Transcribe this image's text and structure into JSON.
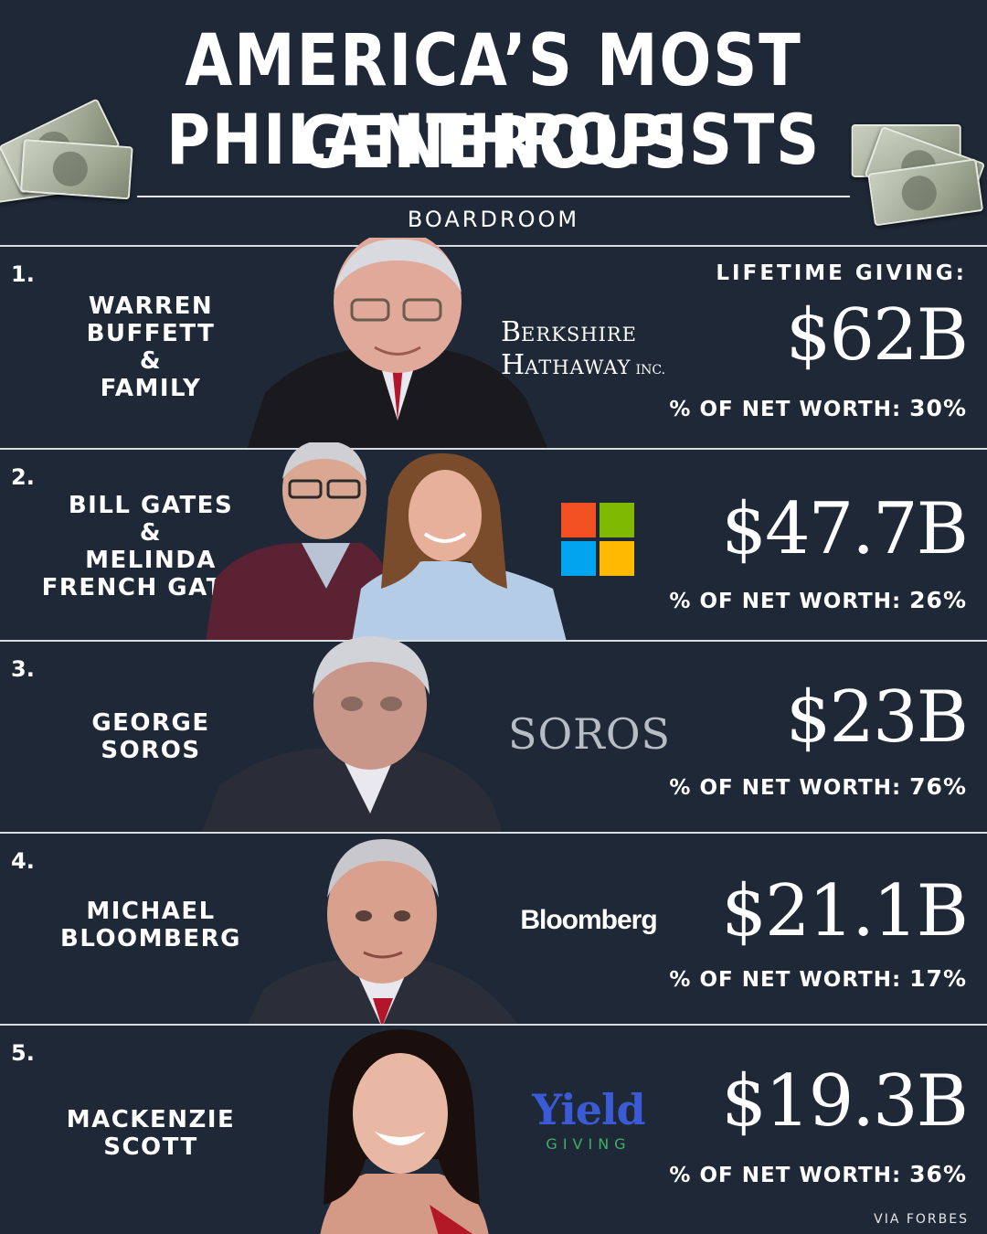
{
  "title": {
    "line1": "AMERICA’S MOST GENEROUS",
    "line2": "PHILANTHROPISTS"
  },
  "brand": "BOARDROOM",
  "lifetime_label": "LIFETIME GIVING:",
  "pct_label": "% OF NET WORTH:",
  "entries": [
    {
      "rank": "1.",
      "name_lines": [
        "WARREN",
        "BUFFETT",
        "&",
        "FAMILY"
      ],
      "logo": {
        "line1_big": "B",
        "line1_rest": "ERKSHIRE",
        "line2_big": "H",
        "line2_rest": "ATHAWAY",
        "suffix": "INC."
      },
      "amount": "$62B",
      "pct": "30%"
    },
    {
      "rank": "2.",
      "name_lines": [
        "BILL GATES",
        "&",
        "MELINDA",
        "FRENCH GATES"
      ],
      "logo": {
        "icon": "microsoft-logo-icon",
        "colors": [
          "#f25022",
          "#7fba00",
          "#00a4ef",
          "#ffb900"
        ]
      },
      "amount": "$47.7B",
      "pct": "26%"
    },
    {
      "rank": "3.",
      "name_lines": [
        "GEORGE",
        "SOROS"
      ],
      "logo": {
        "text": "SOROS"
      },
      "amount": "$23B",
      "pct": "76%"
    },
    {
      "rank": "4.",
      "name_lines": [
        "MICHAEL",
        "BLOOMBERG"
      ],
      "logo": {
        "text": "Bloomberg"
      },
      "amount": "$21.1B",
      "pct": "17%"
    },
    {
      "rank": "5.",
      "name_lines": [
        "MACKENZIE",
        "SCOTT"
      ],
      "logo": {
        "text": "Yield",
        "sub": "GIVING",
        "color": "#3b5bd6",
        "sub_color": "#3fb06a"
      },
      "amount": "$19.3B",
      "pct": "36%"
    }
  ],
  "footer": "VIA FORBES"
}
